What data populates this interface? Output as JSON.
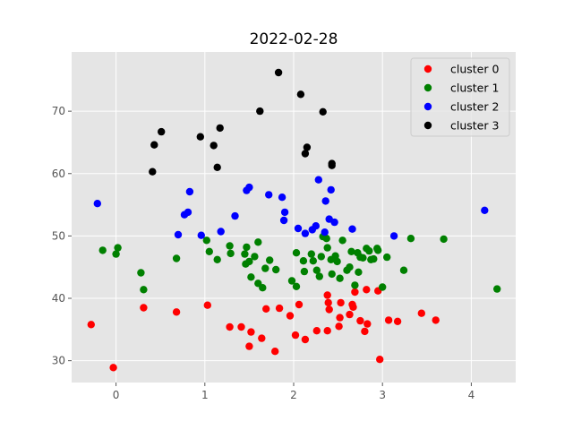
{
  "chart_data": {
    "type": "scatter",
    "title": "2022-02-28",
    "xlabel": "",
    "ylabel": "",
    "xlim": [
      -0.5,
      4.5
    ],
    "ylim": [
      26.5,
      79.5
    ],
    "xticks": [
      0,
      1,
      2,
      3,
      4
    ],
    "yticks": [
      30,
      40,
      50,
      60,
      70
    ],
    "grid": true,
    "legend_position": "top-right",
    "series": [
      {
        "name": "cluster 0",
        "color": "#ff0000",
        "points": [
          [
            -0.28,
            35.8
          ],
          [
            -0.03,
            28.9
          ],
          [
            0.31,
            38.5
          ],
          [
            0.68,
            37.8
          ],
          [
            1.03,
            38.9
          ],
          [
            1.28,
            35.4
          ],
          [
            1.41,
            35.4
          ],
          [
            1.5,
            32.3
          ],
          [
            1.52,
            34.6
          ],
          [
            1.64,
            33.6
          ],
          [
            1.69,
            38.3
          ],
          [
            1.79,
            31.5
          ],
          [
            1.84,
            38.4
          ],
          [
            1.96,
            37.2
          ],
          [
            2.02,
            34.1
          ],
          [
            2.06,
            39.0
          ],
          [
            2.13,
            33.4
          ],
          [
            2.26,
            34.8
          ],
          [
            2.38,
            34.8
          ],
          [
            2.38,
            40.5
          ],
          [
            2.39,
            39.3
          ],
          [
            2.4,
            38.2
          ],
          [
            2.51,
            35.5
          ],
          [
            2.52,
            36.9
          ],
          [
            2.53,
            39.3
          ],
          [
            2.63,
            37.4
          ],
          [
            2.66,
            39.0
          ],
          [
            2.67,
            38.6
          ],
          [
            2.69,
            41.0
          ],
          [
            2.75,
            36.4
          ],
          [
            2.8,
            34.7
          ],
          [
            2.82,
            41.4
          ],
          [
            2.83,
            35.9
          ],
          [
            2.95,
            41.2
          ],
          [
            2.97,
            30.2
          ],
          [
            3.07,
            36.5
          ],
          [
            3.17,
            36.3
          ],
          [
            3.44,
            37.6
          ],
          [
            3.6,
            36.5
          ]
        ]
      },
      {
        "name": "cluster 1",
        "color": "#008000",
        "points": [
          [
            -0.15,
            47.7
          ],
          [
            0.0,
            47.1
          ],
          [
            0.02,
            48.1
          ],
          [
            0.28,
            44.1
          ],
          [
            0.31,
            41.4
          ],
          [
            0.68,
            46.4
          ],
          [
            1.02,
            49.3
          ],
          [
            1.05,
            47.5
          ],
          [
            1.14,
            46.2
          ],
          [
            1.28,
            48.4
          ],
          [
            1.29,
            47.2
          ],
          [
            1.45,
            47.1
          ],
          [
            1.46,
            45.5
          ],
          [
            1.47,
            48.2
          ],
          [
            1.5,
            45.9
          ],
          [
            1.52,
            43.4
          ],
          [
            1.56,
            46.7
          ],
          [
            1.6,
            49.0
          ],
          [
            1.6,
            42.4
          ],
          [
            1.65,
            41.7
          ],
          [
            1.68,
            44.8
          ],
          [
            1.73,
            46.1
          ],
          [
            1.8,
            44.6
          ],
          [
            1.98,
            42.8
          ],
          [
            2.03,
            41.9
          ],
          [
            2.03,
            47.3
          ],
          [
            2.11,
            46.0
          ],
          [
            2.12,
            44.3
          ],
          [
            2.2,
            47.1
          ],
          [
            2.22,
            46.0
          ],
          [
            2.26,
            44.5
          ],
          [
            2.29,
            43.5
          ],
          [
            2.31,
            46.7
          ],
          [
            2.33,
            49.9
          ],
          [
            2.37,
            49.6
          ],
          [
            2.38,
            48.1
          ],
          [
            2.42,
            46.2
          ],
          [
            2.43,
            43.9
          ],
          [
            2.47,
            46.8
          ],
          [
            2.49,
            45.9
          ],
          [
            2.52,
            43.2
          ],
          [
            2.55,
            49.3
          ],
          [
            2.6,
            44.5
          ],
          [
            2.63,
            45.0
          ],
          [
            2.65,
            47.5
          ],
          [
            2.69,
            42.1
          ],
          [
            2.72,
            47.3
          ],
          [
            2.73,
            44.2
          ],
          [
            2.75,
            46.6
          ],
          [
            2.78,
            46.5
          ],
          [
            2.82,
            48.0
          ],
          [
            2.85,
            47.6
          ],
          [
            2.87,
            46.2
          ],
          [
            2.9,
            46.3
          ],
          [
            2.94,
            48.0
          ],
          [
            2.95,
            47.7
          ],
          [
            3.0,
            41.8
          ],
          [
            3.05,
            46.6
          ],
          [
            3.24,
            44.5
          ],
          [
            3.32,
            49.6
          ],
          [
            3.69,
            49.5
          ],
          [
            4.29,
            41.5
          ]
        ]
      },
      {
        "name": "cluster 2",
        "color": "#0000ff",
        "points": [
          [
            -0.21,
            55.2
          ],
          [
            0.7,
            50.2
          ],
          [
            0.77,
            53.4
          ],
          [
            0.81,
            53.8
          ],
          [
            0.83,
            57.1
          ],
          [
            0.96,
            50.1
          ],
          [
            1.18,
            50.7
          ],
          [
            1.34,
            53.2
          ],
          [
            1.47,
            57.3
          ],
          [
            1.5,
            57.8
          ],
          [
            1.72,
            56.6
          ],
          [
            1.87,
            56.2
          ],
          [
            1.89,
            52.5
          ],
          [
            1.9,
            53.8
          ],
          [
            2.05,
            51.2
          ],
          [
            2.13,
            50.4
          ],
          [
            2.21,
            51.0
          ],
          [
            2.25,
            51.6
          ],
          [
            2.28,
            59.0
          ],
          [
            2.35,
            50.6
          ],
          [
            2.36,
            55.6
          ],
          [
            2.4,
            52.7
          ],
          [
            2.42,
            57.4
          ],
          [
            2.46,
            52.2
          ],
          [
            2.66,
            51.1
          ],
          [
            3.13,
            50.0
          ],
          [
            4.15,
            54.1
          ]
        ]
      },
      {
        "name": "cluster 3",
        "color": "#000000",
        "points": [
          [
            0.41,
            60.3
          ],
          [
            0.43,
            64.6
          ],
          [
            0.51,
            66.7
          ],
          [
            0.95,
            65.9
          ],
          [
            1.1,
            64.5
          ],
          [
            1.14,
            61.0
          ],
          [
            1.17,
            67.3
          ],
          [
            1.62,
            70.0
          ],
          [
            1.83,
            76.2
          ],
          [
            2.08,
            72.7
          ],
          [
            2.13,
            63.2
          ],
          [
            2.15,
            64.2
          ],
          [
            2.33,
            69.9
          ],
          [
            2.43,
            61.3
          ],
          [
            2.43,
            61.6
          ]
        ]
      }
    ]
  }
}
